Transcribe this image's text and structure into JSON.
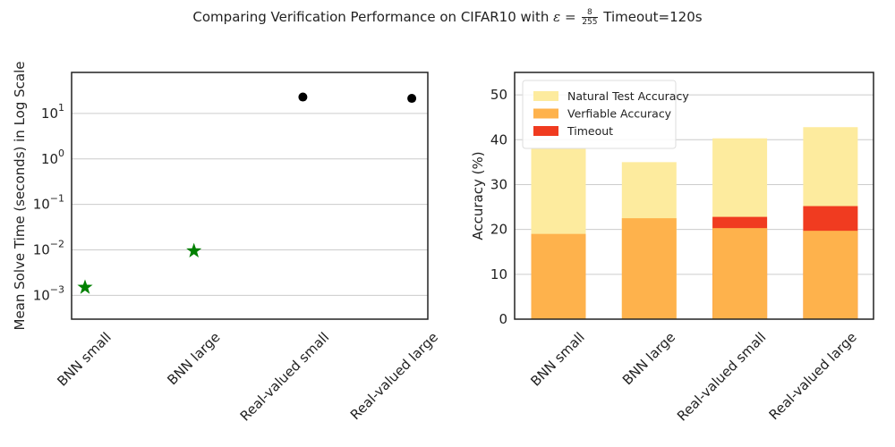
{
  "title": {
    "prefix": "Comparing Verification Performance on CIFAR10 with",
    "epsilon": "ε =",
    "eps_num": "8",
    "eps_den": "255",
    "suffix": "Timeout=120s"
  },
  "chart_data": [
    {
      "type": "scatter",
      "scale": "log",
      "ylabel": "Mean Solve Time (seconds) in Log Scale",
      "categories": [
        "BNN small",
        "BNN large",
        "Real-valued small",
        "Real-valued large"
      ],
      "yticks": [
        {
          "base": "10",
          "exp": "1",
          "value": 10
        },
        {
          "base": "10",
          "exp": "0",
          "value": 1
        },
        {
          "base": "10",
          "exp": "−1",
          "value": 0.1
        },
        {
          "base": "10",
          "exp": "−2",
          "value": 0.01
        },
        {
          "base": "10",
          "exp": "−3",
          "value": 0.001
        }
      ],
      "ylim": [
        0.0003,
        80
      ],
      "points": [
        {
          "category": "BNN small",
          "value": 0.0015,
          "marker": "star",
          "color": "#008000"
        },
        {
          "category": "BNN large",
          "value": 0.0095,
          "marker": "star",
          "color": "#008000"
        },
        {
          "category": "Real-valued small",
          "value": 23,
          "marker": "circle",
          "color": "#000000"
        },
        {
          "category": "Real-valued large",
          "value": 21.5,
          "marker": "circle",
          "color": "#000000"
        }
      ],
      "grid": "horizontal"
    },
    {
      "type": "bar",
      "stacked": false,
      "ylabel": "Accuracy (%)",
      "categories": [
        "BNN small",
        "BNN large",
        "Real-valued small",
        "Real-valued large"
      ],
      "ylim": [
        0,
        55
      ],
      "yticks": [
        0,
        10,
        20,
        30,
        40,
        50
      ],
      "series": [
        {
          "name": "Natural Test Accuracy",
          "color": "#fdeb9e",
          "values": [
            38,
            35,
            40.3,
            42.8
          ]
        },
        {
          "name": "Timeout",
          "color": "#f03b20",
          "values": [
            0,
            0,
            22.8,
            25.2
          ]
        },
        {
          "name": "Verfiable Accuracy",
          "color": "#feb24c",
          "values": [
            19,
            22.5,
            20.3,
            19.7
          ]
        }
      ],
      "legend": {
        "position": "top-left",
        "entries": [
          {
            "label": "Natural Test Accuracy",
            "color": "#fdeb9e"
          },
          {
            "label": "Verfiable Accuracy",
            "color": "#feb24c"
          },
          {
            "label": "Timeout",
            "color": "#f03b20"
          }
        ]
      },
      "grid": "horizontal"
    }
  ]
}
